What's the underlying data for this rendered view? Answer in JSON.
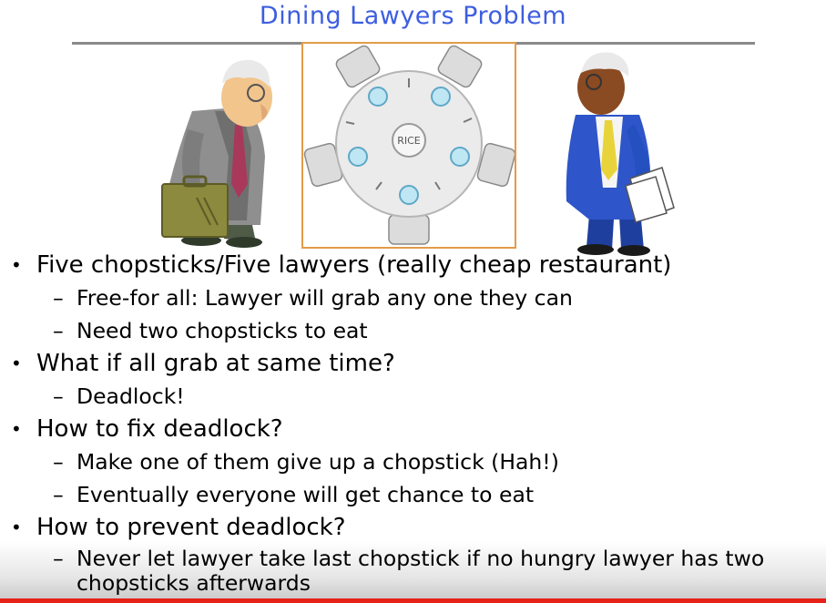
{
  "slide": {
    "title": "Dining Lawyers Problem",
    "table_label": "RICE"
  },
  "bullets": [
    {
      "text": "Five chopsticks/Five lawyers (really cheap restaurant)",
      "subs": [
        "Free-for all: Lawyer will grab any one they can",
        "Need two chopsticks to eat"
      ]
    },
    {
      "text": "What if all grab at same time?",
      "subs": [
        "Deadlock!"
      ]
    },
    {
      "text": "How to fix deadlock?",
      "subs": [
        "Make one of them give up a chopstick (Hah!)",
        "Eventually everyone will get chance to eat"
      ]
    },
    {
      "text": "How to prevent deadlock?",
      "subs": [
        "Never let lawyer take last chopstick if no hungry lawyer has two chopsticks afterwards"
      ]
    }
  ],
  "video": {
    "progress": 1.0
  },
  "colors": {
    "title": "#3d5ee0",
    "table_border": "#e39b4a",
    "progress": "#e62117"
  },
  "icons": {
    "left_figure": "lawyer-with-briefcase-icon",
    "right_figure": "lawyer-with-papers-icon",
    "table": "round-dining-table-icon"
  }
}
